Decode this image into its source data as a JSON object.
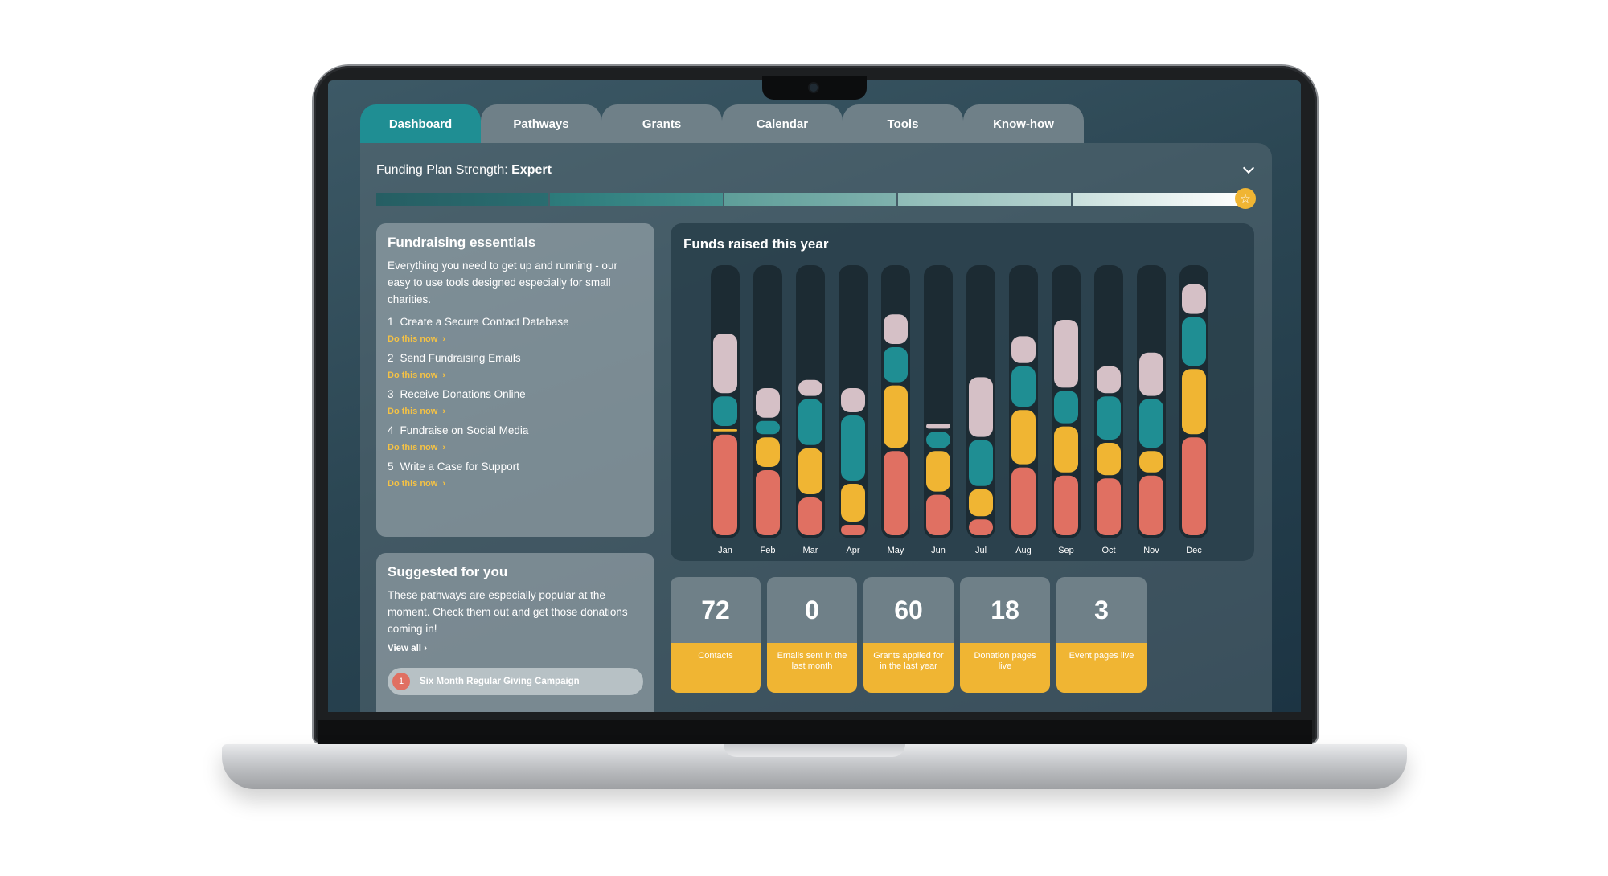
{
  "tabs": [
    "Dashboard",
    "Pathways",
    "Grants",
    "Calendar",
    "Tools",
    "Know-how"
  ],
  "strength": {
    "label": "Funding Plan Strength:",
    "value": "Expert",
    "level": 5,
    "max": 5
  },
  "essentials": {
    "title": "Fundraising essentials",
    "description": "Everything you need to get up and running - our easy to use tools designed especially for small charities.",
    "cta": "Do this now",
    "steps": [
      {
        "num": "1",
        "label": "Create a Secure Contact Database"
      },
      {
        "num": "2",
        "label": "Send Fundraising Emails"
      },
      {
        "num": "3",
        "label": "Receive Donations Online"
      },
      {
        "num": "4",
        "label": "Fundraise on Social Media"
      },
      {
        "num": "5",
        "label": "Write a Case for Support"
      }
    ]
  },
  "suggested": {
    "title": "Suggested for you",
    "description": "These pathways are especially popular at the moment. Check them out and get those donations coming in!",
    "view_all": "View all",
    "items": [
      {
        "num": "1",
        "label": "Six Month Regular Giving Campaign"
      }
    ]
  },
  "chart_data": {
    "type": "bar",
    "title": "Funds raised this year",
    "categories": [
      "Jan",
      "Feb",
      "Mar",
      "Apr",
      "May",
      "Jun",
      "Jul",
      "Aug",
      "Sep",
      "Oct",
      "Nov",
      "Dec"
    ],
    "stacked": true,
    "series": [
      {
        "color": "#e07062",
        "values": [
          38,
          25,
          15,
          5,
          32,
          16,
          7,
          26,
          23,
          22,
          23,
          37
        ]
      },
      {
        "color": "#f0b533",
        "values": [
          2,
          12,
          18,
          15,
          24,
          16,
          11,
          21,
          18,
          13,
          9,
          25
        ]
      },
      {
        "color": "#1f8e93",
        "values": [
          12,
          6,
          18,
          25,
          14,
          7,
          18,
          16,
          13,
          17,
          19,
          19
        ]
      },
      {
        "color": "#d5c0c6",
        "values": [
          23,
          12,
          7,
          10,
          12,
          3,
          23,
          11,
          26,
          11,
          17,
          12
        ]
      }
    ],
    "ylim": [
      0,
      100
    ]
  },
  "stats": [
    {
      "value": "72",
      "label": "Contacts"
    },
    {
      "value": "0",
      "label": "Emails sent in the last month"
    },
    {
      "value": "60",
      "label": "Grants applied for in the last year"
    },
    {
      "value": "18",
      "label": "Donation pages live"
    },
    {
      "value": "3",
      "label": "Event pages live"
    }
  ]
}
